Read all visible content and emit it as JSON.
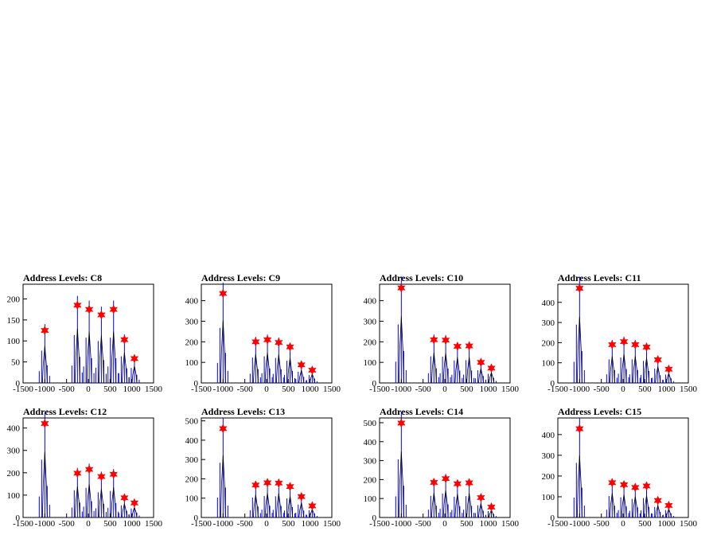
{
  "figure": {
    "background": "#ffffff",
    "colors": {
      "histogram": "#0000ff",
      "frame": "#000000",
      "marker": "#ff0000"
    }
  },
  "chart_data": [
    {
      "type": "bar",
      "title": "Address Levels: C8",
      "xlim": [
        -1500,
        1500
      ],
      "ylim": [
        0,
        235
      ],
      "xticks": [
        -1500,
        -1000,
        -500,
        0,
        500,
        1000,
        1500
      ],
      "yticks": [
        0,
        50,
        100,
        150,
        200
      ],
      "peaks": [
        {
          "x": -1000,
          "y": 125
        },
        {
          "x": -250,
          "y": 185
        },
        {
          "x": 20,
          "y": 175
        },
        {
          "x": 300,
          "y": 162
        },
        {
          "x": 580,
          "y": 175
        },
        {
          "x": 830,
          "y": 103
        },
        {
          "x": 1060,
          "y": 58
        }
      ]
    },
    {
      "type": "bar",
      "title": "Address Levels: C9",
      "xlim": [
        -1500,
        1500
      ],
      "ylim": [
        0,
        480
      ],
      "xticks": [
        -1500,
        -1000,
        -500,
        0,
        500,
        1000,
        1500
      ],
      "yticks": [
        0,
        100,
        200,
        300,
        400
      ],
      "peaks": [
        {
          "x": -1000,
          "y": 435
        },
        {
          "x": -250,
          "y": 200
        },
        {
          "x": 20,
          "y": 210
        },
        {
          "x": 280,
          "y": 197
        },
        {
          "x": 540,
          "y": 175
        },
        {
          "x": 800,
          "y": 88
        },
        {
          "x": 1050,
          "y": 62
        }
      ]
    },
    {
      "type": "bar",
      "title": "Address Levels: C10",
      "xlim": [
        -1500,
        1500
      ],
      "ylim": [
        0,
        480
      ],
      "xticks": [
        -1500,
        -1000,
        -500,
        0,
        500,
        1000,
        1500
      ],
      "yticks": [
        0,
        100,
        200,
        300,
        400
      ],
      "peaks": [
        {
          "x": -1000,
          "y": 462
        },
        {
          "x": -250,
          "y": 210
        },
        {
          "x": 20,
          "y": 208
        },
        {
          "x": 290,
          "y": 178
        },
        {
          "x": 560,
          "y": 180
        },
        {
          "x": 830,
          "y": 100
        },
        {
          "x": 1070,
          "y": 72
        }
      ]
    },
    {
      "type": "bar",
      "title": "Address Levels: C11",
      "xlim": [
        -1500,
        1500
      ],
      "ylim": [
        0,
        490
      ],
      "xticks": [
        -1500,
        -1000,
        -500,
        0,
        500,
        1000,
        1500
      ],
      "yticks": [
        0,
        100,
        200,
        300,
        400
      ],
      "peaks": [
        {
          "x": -1000,
          "y": 470
        },
        {
          "x": -250,
          "y": 190
        },
        {
          "x": 20,
          "y": 205
        },
        {
          "x": 280,
          "y": 190
        },
        {
          "x": 540,
          "y": 178
        },
        {
          "x": 800,
          "y": 115
        },
        {
          "x": 1050,
          "y": 68
        }
      ]
    },
    {
      "type": "bar",
      "title": "Address Levels: C12",
      "xlim": [
        -1500,
        1500
      ],
      "ylim": [
        0,
        445
      ],
      "xticks": [
        -1500,
        -1000,
        -500,
        0,
        500,
        1000,
        1500
      ],
      "yticks": [
        0,
        100,
        200,
        300,
        400
      ],
      "peaks": [
        {
          "x": -1000,
          "y": 420
        },
        {
          "x": -250,
          "y": 198
        },
        {
          "x": 20,
          "y": 215
        },
        {
          "x": 300,
          "y": 183
        },
        {
          "x": 580,
          "y": 193
        },
        {
          "x": 830,
          "y": 88
        },
        {
          "x": 1060,
          "y": 65
        }
      ]
    },
    {
      "type": "bar",
      "title": "Address Levels: C13",
      "xlim": [
        -1500,
        1500
      ],
      "ylim": [
        0,
        515
      ],
      "xticks": [
        -1500,
        -1000,
        -500,
        0,
        500,
        1000,
        1500
      ],
      "yticks": [
        0,
        100,
        200,
        300,
        400,
        500
      ],
      "peaks": [
        {
          "x": -1000,
          "y": 460
        },
        {
          "x": -250,
          "y": 168
        },
        {
          "x": 20,
          "y": 180
        },
        {
          "x": 280,
          "y": 178
        },
        {
          "x": 540,
          "y": 160
        },
        {
          "x": 800,
          "y": 108
        },
        {
          "x": 1050,
          "y": 60
        }
      ]
    },
    {
      "type": "bar",
      "title": "Address Levels: C14",
      "xlim": [
        -1500,
        1500
      ],
      "ylim": [
        0,
        525
      ],
      "xticks": [
        -1500,
        -1000,
        -500,
        0,
        500,
        1000,
        1500
      ],
      "yticks": [
        0,
        100,
        200,
        300,
        400,
        500
      ],
      "peaks": [
        {
          "x": -1000,
          "y": 498
        },
        {
          "x": -250,
          "y": 185
        },
        {
          "x": 20,
          "y": 205
        },
        {
          "x": 290,
          "y": 178
        },
        {
          "x": 560,
          "y": 183
        },
        {
          "x": 830,
          "y": 105
        },
        {
          "x": 1070,
          "y": 55
        }
      ]
    },
    {
      "type": "bar",
      "title": "Address Levels: C15",
      "xlim": [
        -1500,
        1500
      ],
      "ylim": [
        0,
        480
      ],
      "xticks": [
        -1500,
        -1000,
        -500,
        0,
        500,
        1000,
        1500
      ],
      "yticks": [
        0,
        100,
        200,
        300,
        400
      ],
      "peaks": [
        {
          "x": -1000,
          "y": 428
        },
        {
          "x": -250,
          "y": 168
        },
        {
          "x": 20,
          "y": 158
        },
        {
          "x": 280,
          "y": 145
        },
        {
          "x": 540,
          "y": 152
        },
        {
          "x": 800,
          "y": 82
        },
        {
          "x": 1050,
          "y": 58
        }
      ]
    }
  ]
}
